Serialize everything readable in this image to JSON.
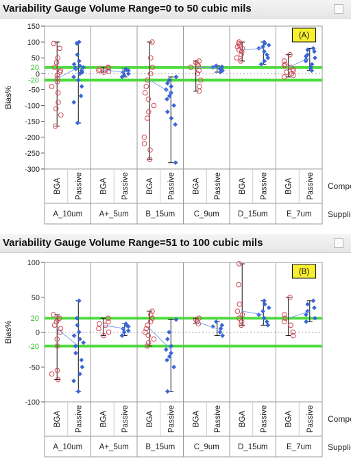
{
  "panels": [
    {
      "title": "Variability Gauge Volume Range=0 to 50 cubic mils"
    },
    {
      "title": "Variability Gauge Volume Range=51 to 100 cubic mils"
    }
  ],
  "chart_data": [
    {
      "type": "scatter",
      "title": "Variability Gauge Volume Range=0 to 50 cubic mils",
      "annotation": "(A)",
      "ylabel": "Bias%",
      "ylim": [
        -300,
        150
      ],
      "yticks": [
        150,
        100,
        50,
        0,
        -50,
        -100,
        -150,
        -200,
        -250,
        -300
      ],
      "reference_lines": [
        20,
        -20
      ],
      "reference_labels": [
        "20",
        "-20"
      ],
      "mean_line": 0,
      "component_axis_label": "Component",
      "supplier_axis_label": "Supplier",
      "suppliers": [
        "A_10um",
        "A+_5um",
        "B_15um",
        "C_9um",
        "D_15um",
        "E_7um"
      ],
      "components": [
        "BGA",
        "Passive"
      ],
      "series": [
        {
          "supplier": "A_10um",
          "component": "BGA",
          "mean": -15,
          "range": [
            -165,
            100
          ],
          "values": [
            95,
            80,
            50,
            35,
            20,
            10,
            5,
            -5,
            -15,
            -25,
            -40,
            -60,
            -90,
            -110,
            -130,
            -165
          ]
        },
        {
          "supplier": "A_10um",
          "component": "Passive",
          "mean": 20,
          "range": [
            -155,
            100
          ],
          "values": [
            100,
            95,
            60,
            40,
            30,
            25,
            20,
            18,
            15,
            10,
            5,
            0,
            -10,
            -20,
            -40,
            -70,
            -90,
            -155
          ]
        },
        {
          "supplier": "A+_5um",
          "component": "BGA",
          "mean": 12,
          "range": [
            5,
            20
          ],
          "values": [
            20,
            18,
            15,
            12,
            10,
            8,
            5
          ]
        },
        {
          "supplier": "A+_5um",
          "component": "Passive",
          "mean": 5,
          "range": [
            -10,
            15
          ],
          "values": [
            15,
            12,
            10,
            5,
            0,
            -5,
            -10
          ]
        },
        {
          "supplier": "B_15um",
          "component": "BGA",
          "mean": -20,
          "range": [
            -270,
            100
          ],
          "values": [
            100,
            50,
            20,
            0,
            -20,
            -40,
            -60,
            -80,
            -100,
            -120,
            -140,
            -200,
            -220,
            -240,
            -270
          ]
        },
        {
          "supplier": "B_15um",
          "component": "Passive",
          "mean": -60,
          "range": [
            -280,
            -10
          ],
          "values": [
            -10,
            -20,
            -30,
            -40,
            -50,
            -60,
            -70,
            -80,
            -100,
            -120,
            -140,
            -160,
            -280
          ]
        },
        {
          "supplier": "C_9um",
          "component": "BGA",
          "mean": 20,
          "range": [
            -55,
            40
          ],
          "values": [
            40,
            35,
            30,
            25,
            20,
            10,
            0,
            -20,
            -40,
            -55
          ]
        },
        {
          "supplier": "C_9um",
          "component": "Passive",
          "mean": 18,
          "range": [
            5,
            25
          ],
          "values": [
            25,
            22,
            20,
            18,
            15,
            10,
            5
          ]
        },
        {
          "supplier": "D_15um",
          "component": "BGA",
          "mean": 75,
          "range": [
            40,
            100
          ],
          "values": [
            100,
            95,
            90,
            85,
            80,
            75,
            70,
            60,
            50,
            40
          ]
        },
        {
          "supplier": "D_15um",
          "component": "Passive",
          "mean": 80,
          "range": [
            30,
            100
          ],
          "values": [
            100,
            95,
            90,
            85,
            80,
            70,
            60,
            50,
            40,
            30
          ]
        },
        {
          "supplier": "E_7um",
          "component": "BGA",
          "mean": 20,
          "range": [
            -10,
            60
          ],
          "values": [
            60,
            40,
            30,
            25,
            20,
            15,
            10,
            5,
            0,
            -5,
            -10
          ]
        },
        {
          "supplier": "E_7um",
          "component": "Passive",
          "mean": 50,
          "range": [
            10,
            80
          ],
          "values": [
            80,
            75,
            70,
            60,
            55,
            50,
            45,
            40,
            30,
            20,
            10
          ]
        }
      ]
    },
    {
      "type": "scatter",
      "title": "Variability Gauge Volume Range=51 to 100 cubic mils",
      "annotation": "(B)",
      "ylabel": "Bias%",
      "ylim": [
        -100,
        100
      ],
      "yticks": [
        100,
        50,
        0,
        -50,
        -100
      ],
      "reference_lines": [
        20,
        -20
      ],
      "reference_labels": [
        "20",
        "-20"
      ],
      "mean_line": 0,
      "component_axis_label": "Component",
      "supplier_axis_label": "Supplier",
      "suppliers": [
        "A_10um",
        "A+_5um",
        "B_15um",
        "C_9um",
        "D_15um",
        "E_7um"
      ],
      "components": [
        "BGA",
        "Passive"
      ],
      "series": [
        {
          "supplier": "A_10um",
          "component": "BGA",
          "mean": 5,
          "range": [
            -68,
            25
          ],
          "values": [
            25,
            20,
            18,
            15,
            10,
            5,
            0,
            -10,
            -20,
            -55,
            -60,
            -68
          ]
        },
        {
          "supplier": "A_10um",
          "component": "Passive",
          "mean": -20,
          "range": [
            -85,
            45
          ],
          "values": [
            45,
            20,
            10,
            0,
            -5,
            -10,
            -15,
            -20,
            -30,
            -40,
            -50,
            -60,
            -70,
            -85
          ]
        },
        {
          "supplier": "A+_5um",
          "component": "BGA",
          "mean": 10,
          "range": [
            -5,
            20
          ],
          "values": [
            20,
            15,
            12,
            10,
            5,
            0,
            -5
          ]
        },
        {
          "supplier": "A+_5um",
          "component": "Passive",
          "mean": 5,
          "range": [
            -5,
            12
          ],
          "values": [
            12,
            10,
            8,
            5,
            2,
            0,
            -5
          ]
        },
        {
          "supplier": "B_15um",
          "component": "BGA",
          "mean": 5,
          "range": [
            -20,
            30
          ],
          "values": [
            30,
            25,
            20,
            15,
            10,
            5,
            0,
            -5,
            -10,
            -15,
            -20
          ]
        },
        {
          "supplier": "B_15um",
          "component": "Passive",
          "mean": -25,
          "range": [
            -85,
            18
          ],
          "values": [
            18,
            0,
            -10,
            -20,
            -25,
            -30,
            -35,
            -40,
            -50,
            -85
          ]
        },
        {
          "supplier": "C_9um",
          "component": "BGA",
          "mean": 15,
          "range": [
            12,
            20
          ],
          "values": [
            20,
            18,
            15,
            12
          ]
        },
        {
          "supplier": "C_9um",
          "component": "Passive",
          "mean": 5,
          "range": [
            -5,
            15
          ],
          "values": [
            15,
            10,
            8,
            5,
            0,
            -5
          ]
        },
        {
          "supplier": "D_15um",
          "component": "BGA",
          "mean": 30,
          "range": [
            10,
            98
          ],
          "values": [
            98,
            68,
            40,
            30,
            25,
            20,
            15,
            10
          ]
        },
        {
          "supplier": "D_15um",
          "component": "Passive",
          "mean": 25,
          "range": [
            10,
            45
          ],
          "values": [
            45,
            40,
            35,
            30,
            25,
            20,
            15,
            10
          ]
        },
        {
          "supplier": "E_7um",
          "component": "BGA",
          "mean": 20,
          "range": [
            -5,
            50
          ],
          "values": [
            50,
            25,
            20,
            15,
            10,
            0,
            -5
          ]
        },
        {
          "supplier": "E_7um",
          "component": "Passive",
          "mean": 30,
          "range": [
            15,
            45
          ],
          "values": [
            45,
            40,
            35,
            30,
            25,
            20,
            15
          ]
        }
      ]
    }
  ]
}
